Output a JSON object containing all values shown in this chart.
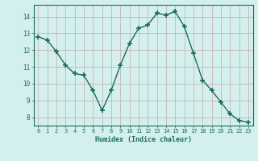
{
  "x": [
    0,
    1,
    2,
    3,
    4,
    5,
    6,
    7,
    8,
    9,
    10,
    11,
    12,
    13,
    14,
    15,
    16,
    17,
    18,
    19,
    20,
    21,
    22,
    23
  ],
  "y": [
    12.8,
    12.6,
    11.9,
    11.1,
    10.6,
    10.5,
    9.6,
    8.4,
    9.6,
    11.1,
    12.4,
    13.3,
    13.5,
    14.2,
    14.1,
    14.3,
    13.4,
    11.8,
    10.2,
    9.6,
    8.9,
    8.2,
    7.8,
    7.7
  ],
  "xlabel": "Humidex (Indice chaleur)",
  "ylim": [
    7.5,
    14.7
  ],
  "xlim": [
    -0.5,
    23.5
  ],
  "yticks": [
    8,
    9,
    10,
    11,
    12,
    13,
    14
  ],
  "xtick_labels": [
    "0",
    "1",
    "2",
    "3",
    "4",
    "5",
    "6",
    "7",
    "8",
    "9",
    "10",
    "11",
    "12",
    "13",
    "14",
    "15",
    "16",
    "17",
    "18",
    "19",
    "20",
    "21",
    "22",
    "23"
  ],
  "line_color": "#1a6b5a",
  "marker_color": "#1a6b5a",
  "bg_color": "#d4f0ee",
  "grid_color": "#c8a8a8",
  "axis_color": "#1a6b5a",
  "tick_color": "#1a6b5a",
  "label_color": "#1a6b5a"
}
